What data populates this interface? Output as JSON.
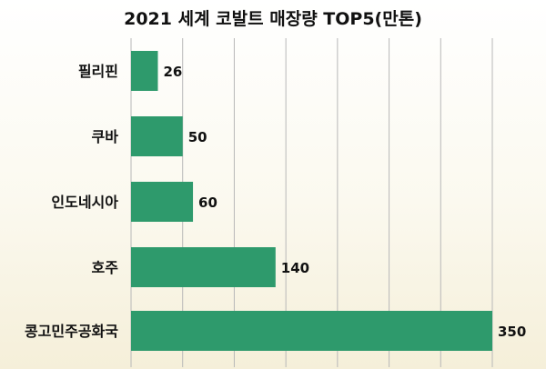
{
  "chart_data": {
    "type": "bar",
    "orientation": "horizontal",
    "title": "2021 세계 코발트 매장량 TOP5(만톤)",
    "categories": [
      "필리핀",
      "쿠바",
      "인도네시아",
      "호주",
      "콩고민주공화국"
    ],
    "values": [
      26,
      50,
      60,
      140,
      350
    ],
    "value_labels": [
      "26",
      "50",
      "60",
      "140",
      "350"
    ],
    "xlim": [
      0,
      350
    ],
    "grid": true,
    "bar_color": "#2e9a6c",
    "grid_color": "#b8b8b8"
  }
}
